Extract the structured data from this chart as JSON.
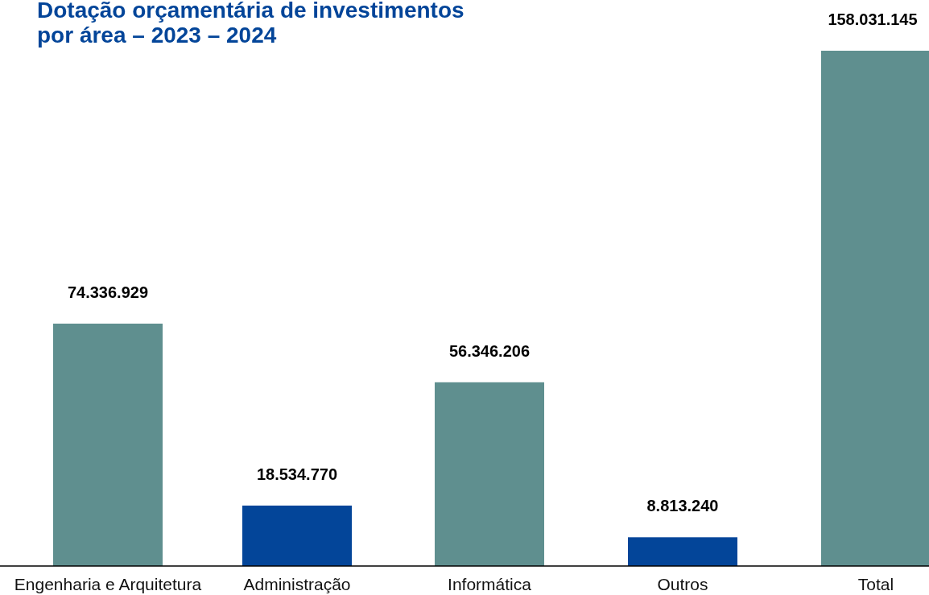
{
  "chart_data": {
    "type": "bar",
    "title": "Dotação orçamentária de investimentos por área – 2023 – 2024",
    "categories": [
      "Engenharia e Arquitetura",
      "Administração",
      "Informática",
      "Outros",
      "Total"
    ],
    "values": [
      74336929,
      18534770,
      56346206,
      8813240,
      158031145
    ],
    "colors": [
      "#5f8f8f",
      "#034599",
      "#5f8f8f",
      "#034599",
      "#5f8f8f"
    ],
    "value_labels": [
      "74.336.929",
      "18.534.770",
      "56.346.206",
      "8.813.240",
      "158.031.145"
    ]
  }
}
